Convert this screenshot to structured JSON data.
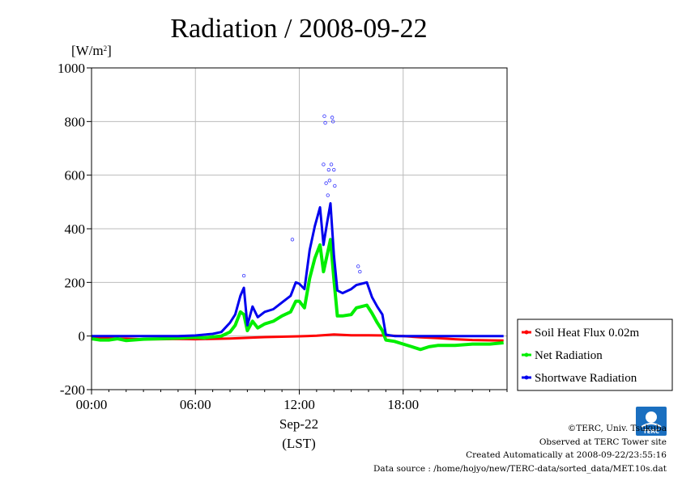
{
  "chart_data": {
    "type": "line",
    "title": "Radiation / 2008-09-22",
    "ylabel": "[W/m²]",
    "ylim": [
      -200,
      1000
    ],
    "yticks": [
      "-200",
      "0",
      "200",
      "400",
      "600",
      "800",
      "1000"
    ],
    "xlim": [
      0,
      24
    ],
    "xticks": [
      "00:00",
      "06:00",
      "12:00",
      "18:00"
    ],
    "xlabel_date": "Sep-22",
    "xlabel_tz": "(LST)",
    "grid": true,
    "legend_position": "right",
    "series": [
      {
        "name": "Soil Heat Flux 0.02m",
        "color": "#ff0000",
        "x": [
          0,
          2,
          3,
          4,
          5,
          6,
          8,
          10,
          12,
          13,
          14,
          15,
          16,
          17,
          18,
          19,
          20,
          21,
          22,
          23,
          23.8
        ],
        "y": [
          -7,
          -10,
          -12,
          -12,
          -11,
          -12,
          -9,
          -4,
          -1,
          1,
          6,
          3,
          3,
          2,
          0,
          -5,
          -8,
          -12,
          -15,
          -16,
          -17
        ]
      },
      {
        "name": "Net Radiation",
        "color": "#00ee00",
        "x": [
          0,
          0.5,
          1,
          1.5,
          2,
          3,
          4,
          5,
          6,
          6.5,
          7,
          7.5,
          8,
          8.3,
          8.6,
          8.8,
          9,
          9.3,
          9.6,
          10,
          10.5,
          11,
          11.5,
          11.8,
          12,
          12.3,
          12.6,
          12.9,
          13.2,
          13.4,
          13.6,
          13.8,
          14,
          14.2,
          14.5,
          15,
          15.3,
          15.6,
          15.9,
          16.2,
          16.5,
          16.8,
          17,
          17.5,
          18,
          18.5,
          19,
          19.5,
          20,
          21,
          22,
          23,
          23.8
        ],
        "y": [
          -10,
          -15,
          -15,
          -10,
          -17,
          -12,
          -10,
          -8,
          -5,
          -7,
          -3,
          0,
          15,
          40,
          90,
          80,
          20,
          55,
          30,
          45,
          55,
          75,
          90,
          130,
          130,
          105,
          215,
          290,
          340,
          240,
          300,
          360,
          210,
          75,
          75,
          80,
          105,
          110,
          115,
          85,
          50,
          20,
          -15,
          -20,
          -30,
          -40,
          -50,
          -40,
          -35,
          -35,
          -30,
          -30,
          -25
        ]
      },
      {
        "name": "Shortwave Radiation",
        "color": "#0000ee",
        "x": [
          0,
          1,
          2,
          3,
          4,
          5,
          6,
          6.5,
          7,
          7.5,
          8,
          8.3,
          8.6,
          8.8,
          9,
          9.3,
          9.6,
          10,
          10.5,
          11,
          11.5,
          11.8,
          12,
          12.3,
          12.6,
          12.9,
          13.2,
          13.4,
          13.6,
          13.8,
          14,
          14.2,
          14.5,
          15,
          15.3,
          15.6,
          15.9,
          16.2,
          16.5,
          16.8,
          17,
          17.5,
          18,
          19,
          20,
          21,
          22,
          23,
          23.8
        ],
        "y": [
          0,
          0,
          0,
          0,
          0,
          0,
          2,
          5,
          8,
          15,
          50,
          80,
          150,
          180,
          40,
          110,
          70,
          90,
          100,
          125,
          150,
          200,
          195,
          175,
          320,
          410,
          480,
          340,
          420,
          495,
          300,
          170,
          160,
          175,
          190,
          195,
          200,
          145,
          110,
          80,
          5,
          0,
          0,
          0,
          0,
          0,
          0,
          0,
          0
        ]
      }
    ],
    "spikes": [
      {
        "x": 8.8,
        "y": 225
      },
      {
        "x": 11.6,
        "y": 360
      },
      {
        "x": 13.4,
        "y": 640
      },
      {
        "x": 13.45,
        "y": 820
      },
      {
        "x": 13.5,
        "y": 795
      },
      {
        "x": 13.55,
        "y": 570
      },
      {
        "x": 13.9,
        "y": 815
      },
      {
        "x": 13.95,
        "y": 800
      },
      {
        "x": 13.85,
        "y": 640
      },
      {
        "x": 13.7,
        "y": 620
      },
      {
        "x": 13.75,
        "y": 580
      },
      {
        "x": 13.65,
        "y": 525
      },
      {
        "x": 14.0,
        "y": 620
      },
      {
        "x": 14.05,
        "y": 560
      },
      {
        "x": 15.4,
        "y": 260
      },
      {
        "x": 15.5,
        "y": 240
      }
    ]
  },
  "footer": {
    "copyright": "©TERC, Univ. Tsukuba",
    "observed": "Observed at TERC Tower site",
    "created": "Created Automatically at 2008-09-22/23:55:16",
    "source": "Data source : /home/hojyo/new/TERC-data/sorted_data/MET.10s.dat"
  },
  "logo": {
    "text": "TERC",
    "color": "#1a6fc0"
  }
}
